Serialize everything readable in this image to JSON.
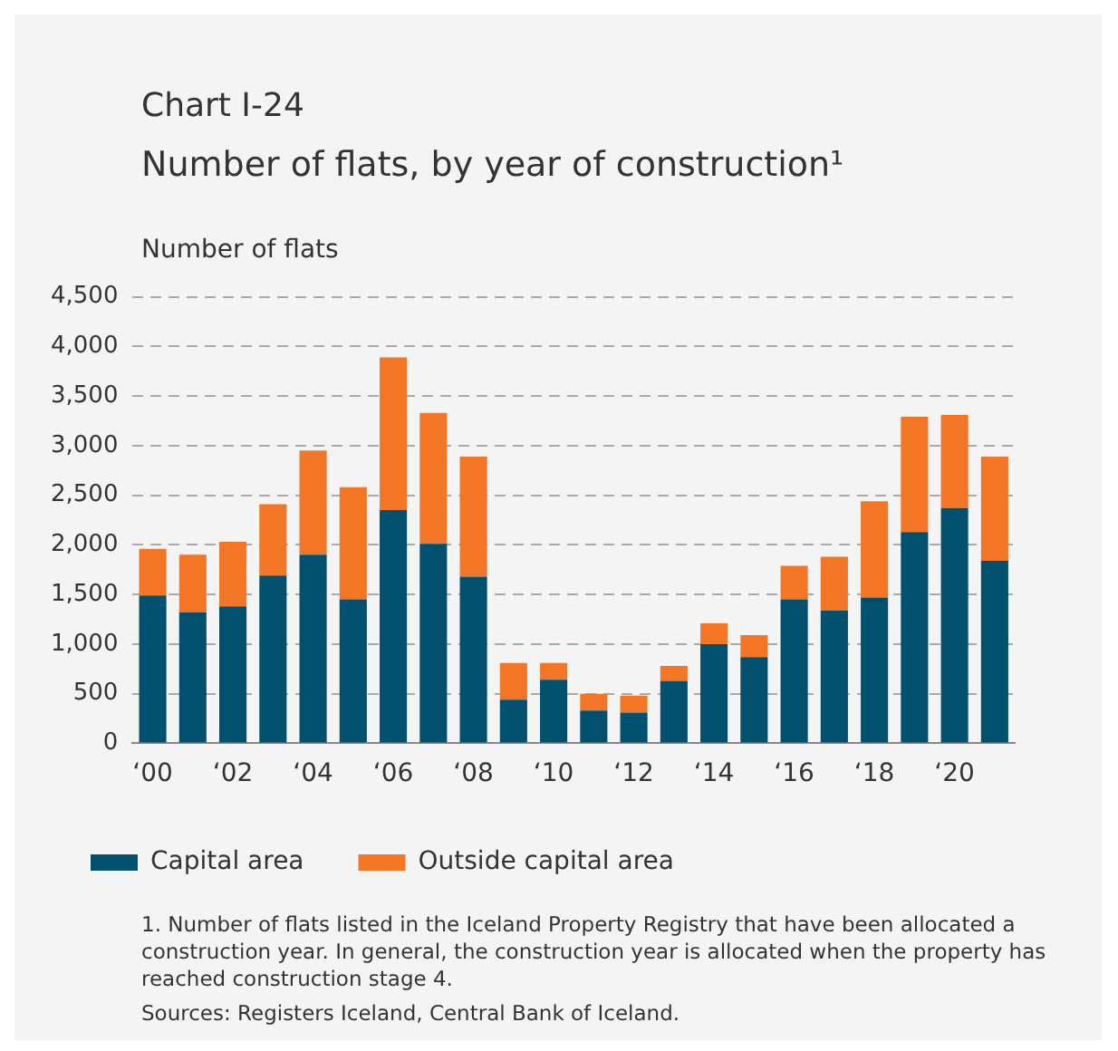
{
  "chart_data": {
    "type": "bar",
    "title": "Chart I-24",
    "subtitle": "Number of flats, by year of construction¹",
    "ylabel": "Number of flats",
    "categories": [
      "‘00",
      null,
      "‘02",
      null,
      "‘04",
      null,
      "‘06",
      null,
      "‘08",
      null,
      "‘10",
      null,
      "‘12",
      null,
      "‘14",
      null,
      "‘16",
      null,
      "‘18",
      null,
      "‘20",
      null
    ],
    "series": [
      {
        "name": "Capital area",
        "color": "#00506e",
        "values": [
          1490,
          1320,
          1380,
          1690,
          1900,
          1450,
          2350,
          2010,
          1680,
          440,
          640,
          330,
          310,
          630,
          1000,
          870,
          1450,
          1340,
          1470,
          2130,
          2370,
          1840
        ]
      },
      {
        "name": "Outside capital area",
        "color": "#f37626",
        "values": [
          470,
          580,
          650,
          720,
          1050,
          1130,
          1540,
          1320,
          1210,
          370,
          170,
          170,
          170,
          150,
          210,
          220,
          340,
          540,
          970,
          1160,
          940,
          1050
        ]
      }
    ],
    "stacked": true,
    "ylim": [
      0,
      4500
    ],
    "yticks": [
      0,
      500,
      {
        "value": 1000,
        "label": "1,000"
      },
      {
        "value": 1500,
        "label": "1,500"
      },
      {
        "value": 2000,
        "label": "2,000"
      },
      {
        "value": 2500,
        "label": "2,500"
      },
      {
        "value": 3000,
        "label": "3,000"
      },
      {
        "value": 3500,
        "label": "3,500"
      },
      {
        "value": 4000,
        "label": "4,000"
      },
      {
        "value": 4500,
        "label": "4,500"
      }
    ],
    "grid": "y",
    "legend": "bottom",
    "annotations": [
      "1. Number of flats listed in the Iceland Property Registry that have been allocated a construction year. In general, the construction year is allocated when the property has reached construction stage 4.",
      "Sources: Registers Iceland, Central Bank of Iceland."
    ]
  }
}
